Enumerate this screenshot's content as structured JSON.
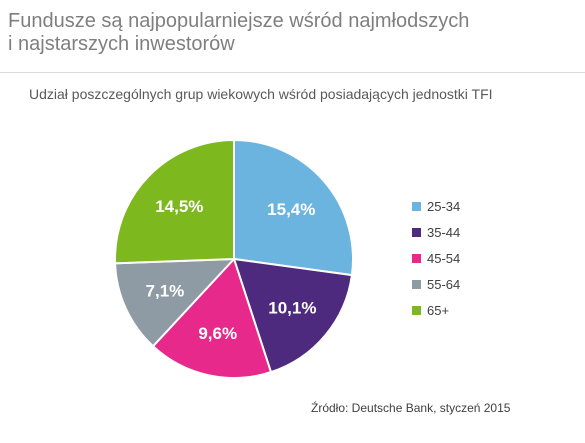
{
  "title_lines": [
    "Fundusze są najpopularniejsze wśród najmłodszych",
    "i najstarszych inwestorów"
  ],
  "subtitle": "Udział poszczególnych grup wiekowych wśród posiadających jednostki TFI",
  "source": "Źródło: Deutsche Bank, styczeń 2015",
  "chart_data": {
    "type": "pie",
    "title": "Udział poszczególnych grup wiekowych wśród posiadających jednostki TFI",
    "categories": [
      "25-34",
      "35-44",
      "45-54",
      "55-64",
      "65+"
    ],
    "values": [
      15.4,
      10.1,
      9.6,
      7.1,
      14.5
    ],
    "value_labels": [
      "15,4%",
      "10,1%",
      "9,6%",
      "7,1%",
      "14,5%"
    ],
    "colors": [
      "#6CB4E0",
      "#4E2A7E",
      "#E6298A",
      "#8E9BA5",
      "#7DB81E"
    ],
    "legend_position": "right",
    "start_angle": "12 o'clock, clockwise"
  }
}
